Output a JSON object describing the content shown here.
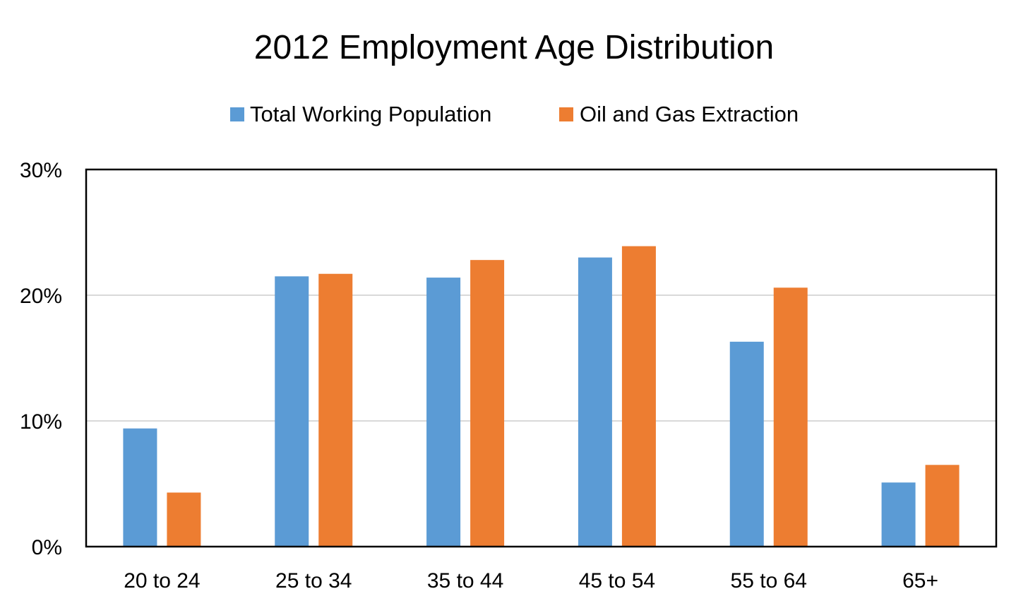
{
  "chart_data": {
    "type": "bar",
    "title": "2012 Employment Age Distribution",
    "xlabel": "",
    "ylabel": "",
    "categories": [
      "20 to 24",
      "25 to 34",
      "35 to 44",
      "45 to 54",
      "55 to 64",
      "65+"
    ],
    "series": [
      {
        "name": "Total Working Population",
        "color": "#5b9bd5",
        "values": [
          9.4,
          21.5,
          21.4,
          23.0,
          16.3,
          5.1
        ]
      },
      {
        "name": "Oil and Gas Extraction",
        "color": "#ed7d31",
        "values": [
          4.3,
          21.7,
          22.8,
          23.9,
          20.6,
          6.5
        ]
      }
    ],
    "ylim": [
      0,
      30
    ],
    "yticks": [
      0,
      10,
      20,
      30
    ],
    "ytick_labels": [
      "0%",
      "10%",
      "20%",
      "30%"
    ],
    "grid": true,
    "legend_position": "top"
  }
}
